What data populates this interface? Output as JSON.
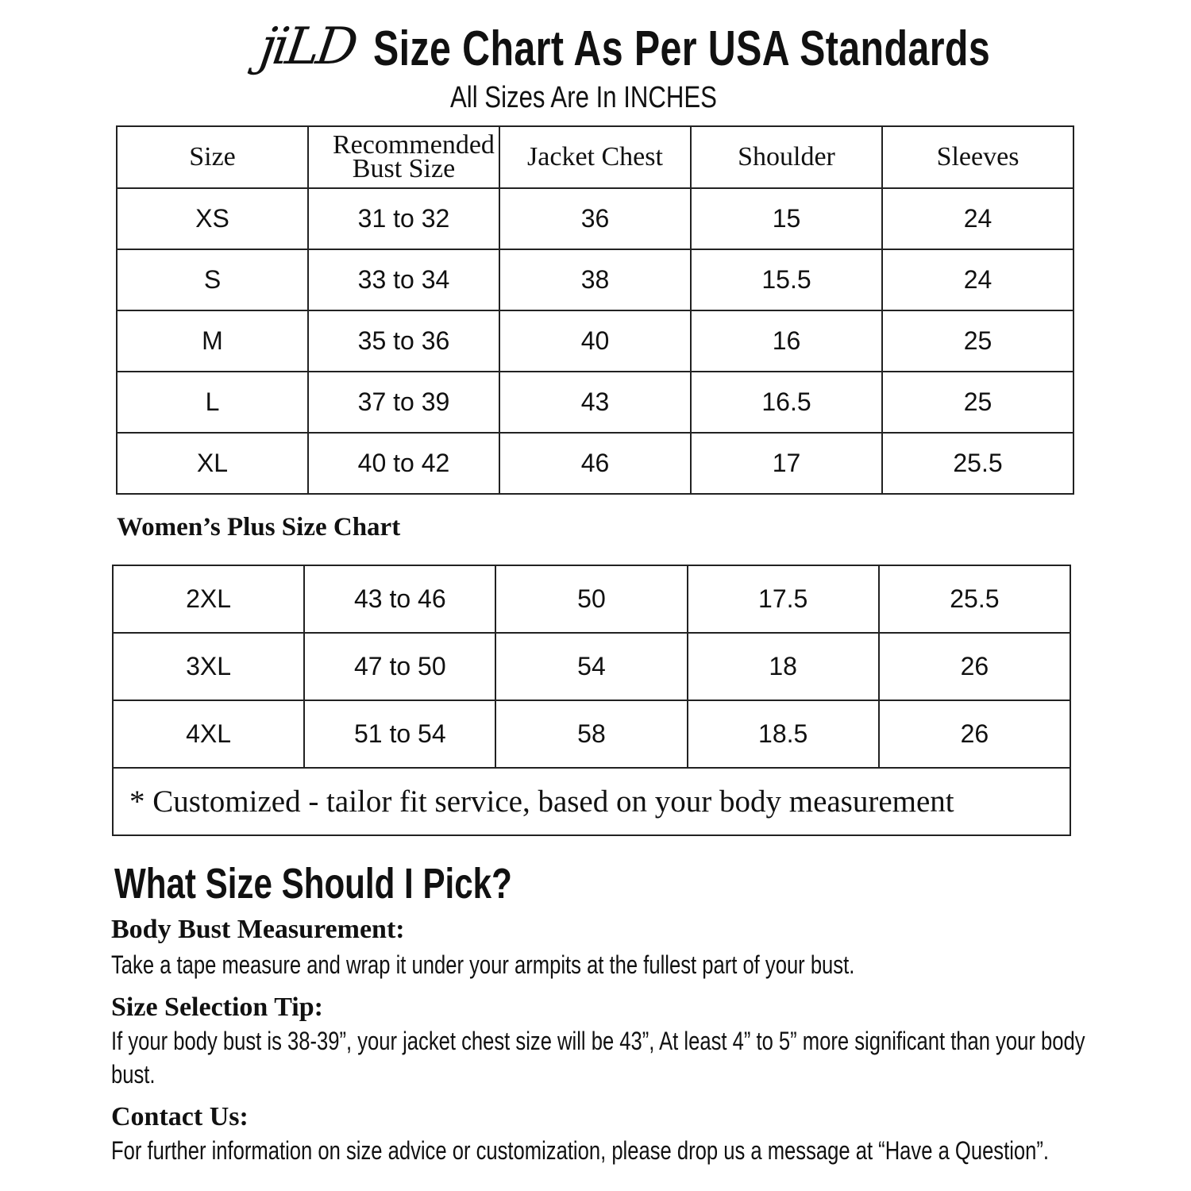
{
  "header": {
    "logo": "jiLD",
    "title": "Size Chart As Per USA Standards",
    "subtitle": "All Sizes Are In INCHES"
  },
  "standard_table": {
    "columns": [
      "Size",
      "Recommended Bust Size",
      "Jacket Chest",
      "Shoulder",
      "Sleeves"
    ],
    "rows": [
      [
        "XS",
        "31 to 32",
        "36",
        "15",
        "24"
      ],
      [
        "S",
        "33 to 34",
        "38",
        "15.5",
        "24"
      ],
      [
        "M",
        "35 to 36",
        "40",
        "16",
        "25"
      ],
      [
        "L",
        "37 to 39",
        "43",
        "16.5",
        "25"
      ],
      [
        "XL",
        "40 to 42",
        "46",
        "17",
        "25.5"
      ]
    ]
  },
  "plus_table": {
    "title": "Women’s Plus Size Chart",
    "rows": [
      [
        "2XL",
        "43 to 46",
        "50",
        "17.5",
        "25.5"
      ],
      [
        "3XL",
        "47 to 50",
        "54",
        "18",
        "26"
      ],
      [
        "4XL",
        "51 to 54",
        "58",
        "18.5",
        "26"
      ]
    ],
    "note": "* Customized - tailor fit service,  based on your body measurement"
  },
  "guide": {
    "title": "What Size Should I Pick?",
    "sections": [
      {
        "heading": "Body Bust Measurement:",
        "text": "Take a tape measure and wrap it under your armpits at the fullest part of your bust."
      },
      {
        "heading": "Size Selection Tip:",
        "text": "If your body bust is 38-39”, your jacket chest size will be 43”, At least 4” to 5” more significant than your body bust."
      },
      {
        "heading": "Contact Us:",
        "text": "For further information on size advice or customization, please drop us a message at “Have a Question”."
      }
    ]
  }
}
